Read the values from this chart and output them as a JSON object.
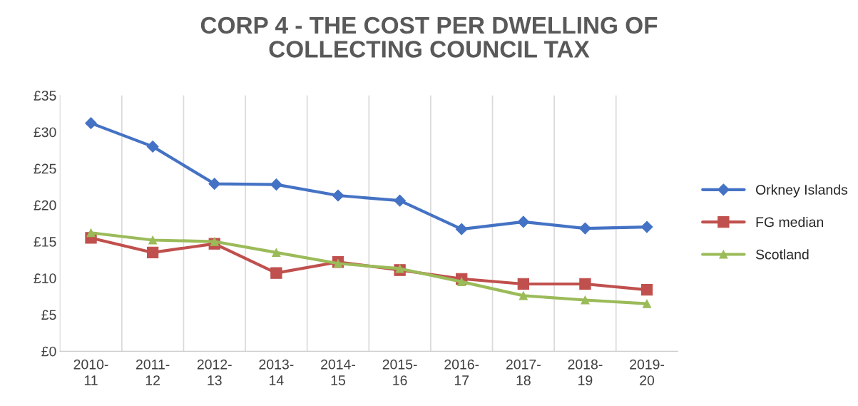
{
  "chart_data": {
    "type": "line",
    "title": "CORP 4 - THE COST PER DWELLING OF\nCOLLECTING COUNCIL TAX",
    "categories": [
      "2010-11",
      "2011-12",
      "2012-13",
      "2013-14",
      "2014-15",
      "2015-16",
      "2016-17",
      "2017-18",
      "2018-19",
      "2019-20"
    ],
    "series": [
      {
        "name": "Orkney Islands",
        "color": "#4472c4",
        "marker": "diamond",
        "values": [
          31.2,
          28.0,
          22.9,
          22.8,
          21.3,
          20.6,
          16.7,
          17.7,
          16.8,
          17.0
        ]
      },
      {
        "name": "FG median",
        "color": "#c0504d",
        "marker": "square",
        "values": [
          15.5,
          13.5,
          14.7,
          10.7,
          12.2,
          11.1,
          9.9,
          9.2,
          9.2,
          8.4
        ]
      },
      {
        "name": "Scotland",
        "color": "#9bbb59",
        "marker": "triangle",
        "values": [
          16.2,
          15.2,
          15.0,
          13.5,
          12.0,
          11.3,
          9.5,
          7.6,
          7.0,
          6.5
        ]
      }
    ],
    "ylim": [
      0,
      35
    ],
    "yticks": [
      {
        "value": 0,
        "label": "£0"
      },
      {
        "value": 5,
        "label": "£5"
      },
      {
        "value": 10,
        "label": "£10"
      },
      {
        "value": 15,
        "label": "£15"
      },
      {
        "value": 20,
        "label": "£20"
      },
      {
        "value": 25,
        "label": "£25"
      },
      {
        "value": 30,
        "label": "£30"
      },
      {
        "value": 35,
        "label": "£35"
      }
    ],
    "grid": "x",
    "legend": "right",
    "line_style": "solid"
  }
}
